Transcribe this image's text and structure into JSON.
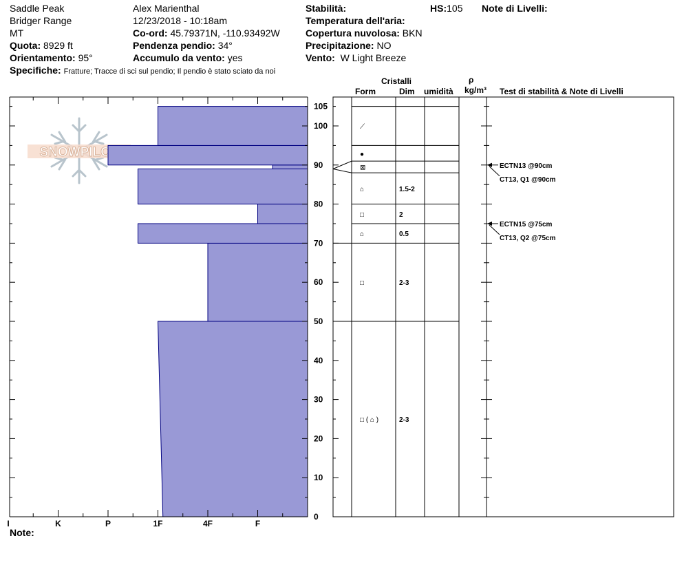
{
  "header": {
    "location": "Saddle Peak",
    "range": "Bridger Range",
    "state": "MT",
    "elevation_label": "Quota:",
    "elevation_value": "8929 ft",
    "aspect_label": "Orientamento:",
    "aspect_value": "95°",
    "observer": "Alex Marienthal",
    "datetime": "12/23/2018 - 10:18am",
    "coords_label": "Co-ord:",
    "coords_value": "45.79371N, -110.93492W",
    "slope_label": "Pendenza pendio:",
    "slope_value": "34°",
    "wind_loading_label": "Accumulo da vento:",
    "wind_loading_value": "yes",
    "stability_label": "Stabilità:",
    "air_temp_label": "Temperatura dell'aria:",
    "cloud_label": "Copertura nuvolosa:",
    "cloud_value": "BKN",
    "precip_label": "Precipitazione:",
    "precip_value": "NO",
    "wind_label": "Vento:",
    "wind_value": "W Light Breeze",
    "hs_label": "HS:",
    "hs_value": "105",
    "layer_notes_label": "Note di Livelli:",
    "specifics_label": "Specifiche:",
    "specifics_value": "Fratture;  Tracce di sci sul pendio;  Il pendio è stato sciato da noi"
  },
  "columns": {
    "crystals": "Cristalli",
    "form": "Form",
    "size": "Dim",
    "moisture": "umidità",
    "rho": "ρ",
    "density_unit": "kg/m³",
    "tests": "Test di stabilità & Note di Livelli"
  },
  "logo": {
    "text": "SNOWPILOT"
  },
  "footer": {
    "notes_label": "Note:"
  },
  "chart_data": {
    "type": "bar",
    "title": "",
    "xlabel": "",
    "ylabel": "",
    "y_unit": "cm",
    "ylim": [
      0,
      110
    ],
    "y_ticks": [
      0,
      10,
      20,
      30,
      40,
      50,
      60,
      70,
      80,
      90,
      100,
      105
    ],
    "x_tick_labels": [
      "I",
      "K",
      "P",
      "1F",
      "4F",
      "F"
    ],
    "hardness_scale_note": "hardness index 0=right edge; F=1, 4F=2, 1F=3, P=4, K=5, I=6",
    "bar_color": "#9999d6",
    "series": [
      {
        "values": [
          {
            "bottom": 0,
            "top": 50,
            "hardness_bottom": 2.9,
            "hardness_top": 3.0
          },
          {
            "bottom": 50,
            "top": 70,
            "hardness": 2.0
          },
          {
            "bottom": 70,
            "top": 75,
            "hardness": 3.4
          },
          {
            "bottom": 75,
            "top": 80,
            "hardness": 1.0
          },
          {
            "bottom": 80,
            "top": 89,
            "hardness": 3.4
          },
          {
            "bottom": 89,
            "top": 90,
            "hardness": 0.7
          },
          {
            "bottom": 90,
            "top": 95,
            "hardness": 4.0
          },
          {
            "bottom": 95,
            "top": 105,
            "hardness": 3.0
          }
        ]
      }
    ],
    "layers": [
      {
        "bottom": 0,
        "top": 50,
        "form": "□ ( ⌂ )",
        "size": "2-3"
      },
      {
        "bottom": 50,
        "top": 70,
        "form": "□",
        "size": "2-3"
      },
      {
        "bottom": 70,
        "top": 75,
        "form": "⌂",
        "size": "0.5"
      },
      {
        "bottom": 75,
        "top": 80,
        "form": "□",
        "size": "2"
      },
      {
        "bottom": 80,
        "top": 88,
        "form": "⌂",
        "size": "1.5-2"
      },
      {
        "bottom": 88,
        "top": 91,
        "form": "⊠",
        "size": ""
      },
      {
        "bottom": 91,
        "top": 95,
        "form": "●",
        "size": ""
      },
      {
        "bottom": 95,
        "top": 105,
        "form": "⟋",
        "size": ""
      }
    ],
    "tests": [
      {
        "depth": 90,
        "label": "ECTN13 @90cm"
      },
      {
        "depth": 90,
        "label": "CT13, Q1 @90cm"
      },
      {
        "depth": 75,
        "label": "ECTN15 @75cm"
      },
      {
        "depth": 75,
        "label": "CT13, Q2 @75cm"
      }
    ]
  }
}
